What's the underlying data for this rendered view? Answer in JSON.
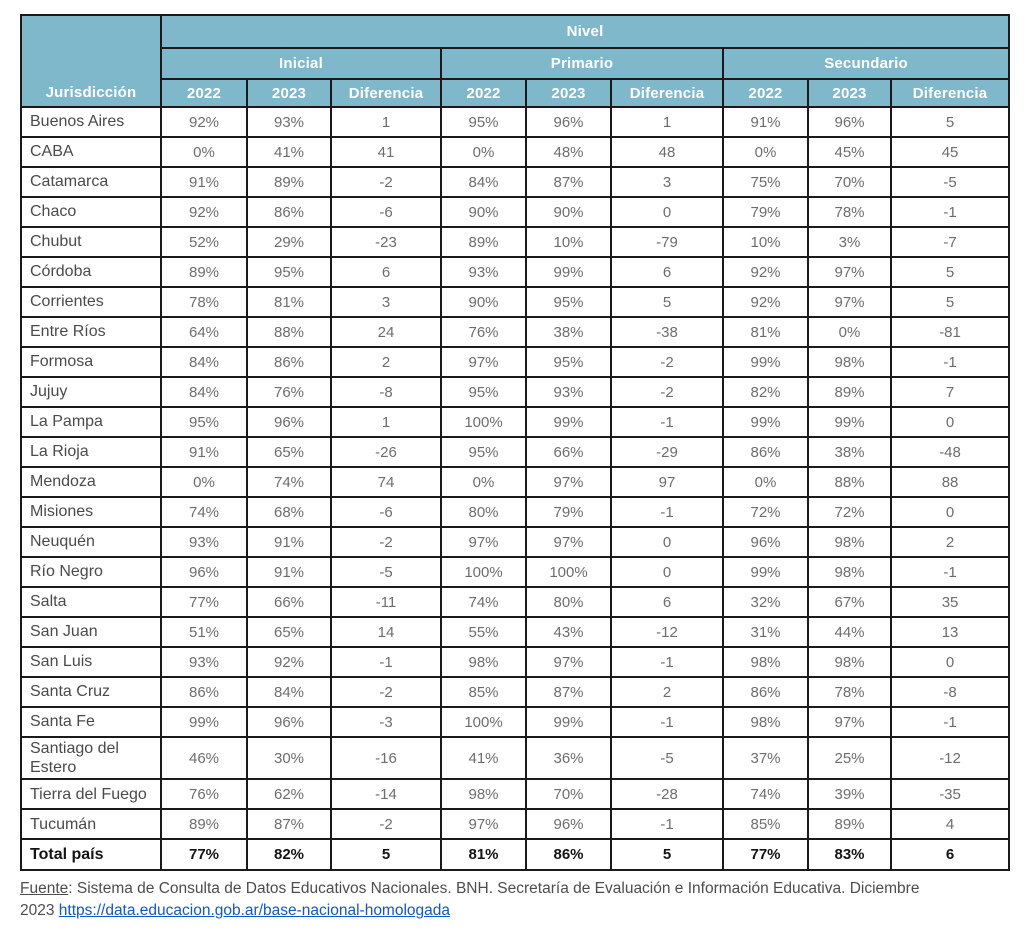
{
  "colors": {
    "header_bg": "#7fb8cb",
    "header_text": "#ffffff",
    "grid_border": "#1a1a1a",
    "body_text": "#6d6d6d",
    "link_blue": "#1157cc"
  },
  "table": {
    "header": {
      "jurisdiction_label": "Jurisdicción",
      "nivel_label": "Nivel",
      "groups": [
        {
          "label": "Inicial"
        },
        {
          "label": "Primario"
        },
        {
          "label": "Secundario"
        }
      ],
      "sub_columns": [
        "2022",
        "2023",
        "Diferencia"
      ]
    },
    "rows": [
      {
        "jurisdiction": "Buenos Aires",
        "inicial": [
          "92%",
          "93%",
          "1"
        ],
        "primario": [
          "95%",
          "96%",
          "1"
        ],
        "secundario": [
          "91%",
          "96%",
          "5"
        ]
      },
      {
        "jurisdiction": "CABA",
        "inicial": [
          "0%",
          "41%",
          "41"
        ],
        "primario": [
          "0%",
          "48%",
          "48"
        ],
        "secundario": [
          "0%",
          "45%",
          "45"
        ]
      },
      {
        "jurisdiction": "Catamarca",
        "inicial": [
          "91%",
          "89%",
          "-2"
        ],
        "primario": [
          "84%",
          "87%",
          "3"
        ],
        "secundario": [
          "75%",
          "70%",
          "-5"
        ]
      },
      {
        "jurisdiction": "Chaco",
        "inicial": [
          "92%",
          "86%",
          "-6"
        ],
        "primario": [
          "90%",
          "90%",
          "0"
        ],
        "secundario": [
          "79%",
          "78%",
          "-1"
        ]
      },
      {
        "jurisdiction": "Chubut",
        "inicial": [
          "52%",
          "29%",
          "-23"
        ],
        "primario": [
          "89%",
          "10%",
          "-79"
        ],
        "secundario": [
          "10%",
          "3%",
          "-7"
        ]
      },
      {
        "jurisdiction": "Córdoba",
        "inicial": [
          "89%",
          "95%",
          "6"
        ],
        "primario": [
          "93%",
          "99%",
          "6"
        ],
        "secundario": [
          "92%",
          "97%",
          "5"
        ]
      },
      {
        "jurisdiction": "Corrientes",
        "inicial": [
          "78%",
          "81%",
          "3"
        ],
        "primario": [
          "90%",
          "95%",
          "5"
        ],
        "secundario": [
          "92%",
          "97%",
          "5"
        ]
      },
      {
        "jurisdiction": "Entre Ríos",
        "inicial": [
          "64%",
          "88%",
          "24"
        ],
        "primario": [
          "76%",
          "38%",
          "-38"
        ],
        "secundario": [
          "81%",
          "0%",
          "-81"
        ]
      },
      {
        "jurisdiction": "Formosa",
        "inicial": [
          "84%",
          "86%",
          "2"
        ],
        "primario": [
          "97%",
          "95%",
          "-2"
        ],
        "secundario": [
          "99%",
          "98%",
          "-1"
        ]
      },
      {
        "jurisdiction": "Jujuy",
        "inicial": [
          "84%",
          "76%",
          "-8"
        ],
        "primario": [
          "95%",
          "93%",
          "-2"
        ],
        "secundario": [
          "82%",
          "89%",
          "7"
        ]
      },
      {
        "jurisdiction": "La Pampa",
        "inicial": [
          "95%",
          "96%",
          "1"
        ],
        "primario": [
          "100%",
          "99%",
          "-1"
        ],
        "secundario": [
          "99%",
          "99%",
          "0"
        ]
      },
      {
        "jurisdiction": "La Rioja",
        "inicial": [
          "91%",
          "65%",
          "-26"
        ],
        "primario": [
          "95%",
          "66%",
          "-29"
        ],
        "secundario": [
          "86%",
          "38%",
          "-48"
        ]
      },
      {
        "jurisdiction": "Mendoza",
        "inicial": [
          "0%",
          "74%",
          "74"
        ],
        "primario": [
          "0%",
          "97%",
          "97"
        ],
        "secundario": [
          "0%",
          "88%",
          "88"
        ]
      },
      {
        "jurisdiction": "Misiones",
        "inicial": [
          "74%",
          "68%",
          "-6"
        ],
        "primario": [
          "80%",
          "79%",
          "-1"
        ],
        "secundario": [
          "72%",
          "72%",
          "0"
        ]
      },
      {
        "jurisdiction": "Neuquén",
        "inicial": [
          "93%",
          "91%",
          "-2"
        ],
        "primario": [
          "97%",
          "97%",
          "0"
        ],
        "secundario": [
          "96%",
          "98%",
          "2"
        ]
      },
      {
        "jurisdiction": "Río Negro",
        "inicial": [
          "96%",
          "91%",
          "-5"
        ],
        "primario": [
          "100%",
          "100%",
          "0"
        ],
        "secundario": [
          "99%",
          "98%",
          "-1"
        ]
      },
      {
        "jurisdiction": "Salta",
        "inicial": [
          "77%",
          "66%",
          "-11"
        ],
        "primario": [
          "74%",
          "80%",
          "6"
        ],
        "secundario": [
          "32%",
          "67%",
          "35"
        ]
      },
      {
        "jurisdiction": "San Juan",
        "inicial": [
          "51%",
          "65%",
          "14"
        ],
        "primario": [
          "55%",
          "43%",
          "-12"
        ],
        "secundario": [
          "31%",
          "44%",
          "13"
        ]
      },
      {
        "jurisdiction": "San Luis",
        "inicial": [
          "93%",
          "92%",
          "-1"
        ],
        "primario": [
          "98%",
          "97%",
          "-1"
        ],
        "secundario": [
          "98%",
          "98%",
          "0"
        ]
      },
      {
        "jurisdiction": "Santa Cruz",
        "inicial": [
          "86%",
          "84%",
          "-2"
        ],
        "primario": [
          "85%",
          "87%",
          "2"
        ],
        "secundario": [
          "86%",
          "78%",
          "-8"
        ]
      },
      {
        "jurisdiction": "Santa Fe",
        "inicial": [
          "99%",
          "96%",
          "-3"
        ],
        "primario": [
          "100%",
          "99%",
          "-1"
        ],
        "secundario": [
          "98%",
          "97%",
          "-1"
        ]
      },
      {
        "jurisdiction": "Santiago del Estero",
        "inicial": [
          "46%",
          "30%",
          "-16"
        ],
        "primario": [
          "41%",
          "36%",
          "-5"
        ],
        "secundario": [
          "37%",
          "25%",
          "-12"
        ]
      },
      {
        "jurisdiction": "Tierra del Fuego",
        "inicial": [
          "76%",
          "62%",
          "-14"
        ],
        "primario": [
          "98%",
          "70%",
          "-28"
        ],
        "secundario": [
          "74%",
          "39%",
          "-35"
        ]
      },
      {
        "jurisdiction": "Tucumán",
        "inicial": [
          "89%",
          "87%",
          "-2"
        ],
        "primario": [
          "97%",
          "96%",
          "-1"
        ],
        "secundario": [
          "85%",
          "89%",
          "4"
        ]
      }
    ],
    "total_row": {
      "jurisdiction": "Total país",
      "inicial": [
        "77%",
        "82%",
        "5"
      ],
      "primario": [
        "81%",
        "86%",
        "5"
      ],
      "secundario": [
        "77%",
        "83%",
        "6"
      ]
    }
  },
  "footer": {
    "fuente_label": "Fuente",
    "line1_rest": ": Sistema de Consulta de Datos Educativos Nacionales. BNH. Secretaría de Evaluación e Información Educativa. Diciembre",
    "line2_prefix": "2023 ",
    "link": "https://data.educacion.gob.ar/base-nacional-homologada"
  }
}
